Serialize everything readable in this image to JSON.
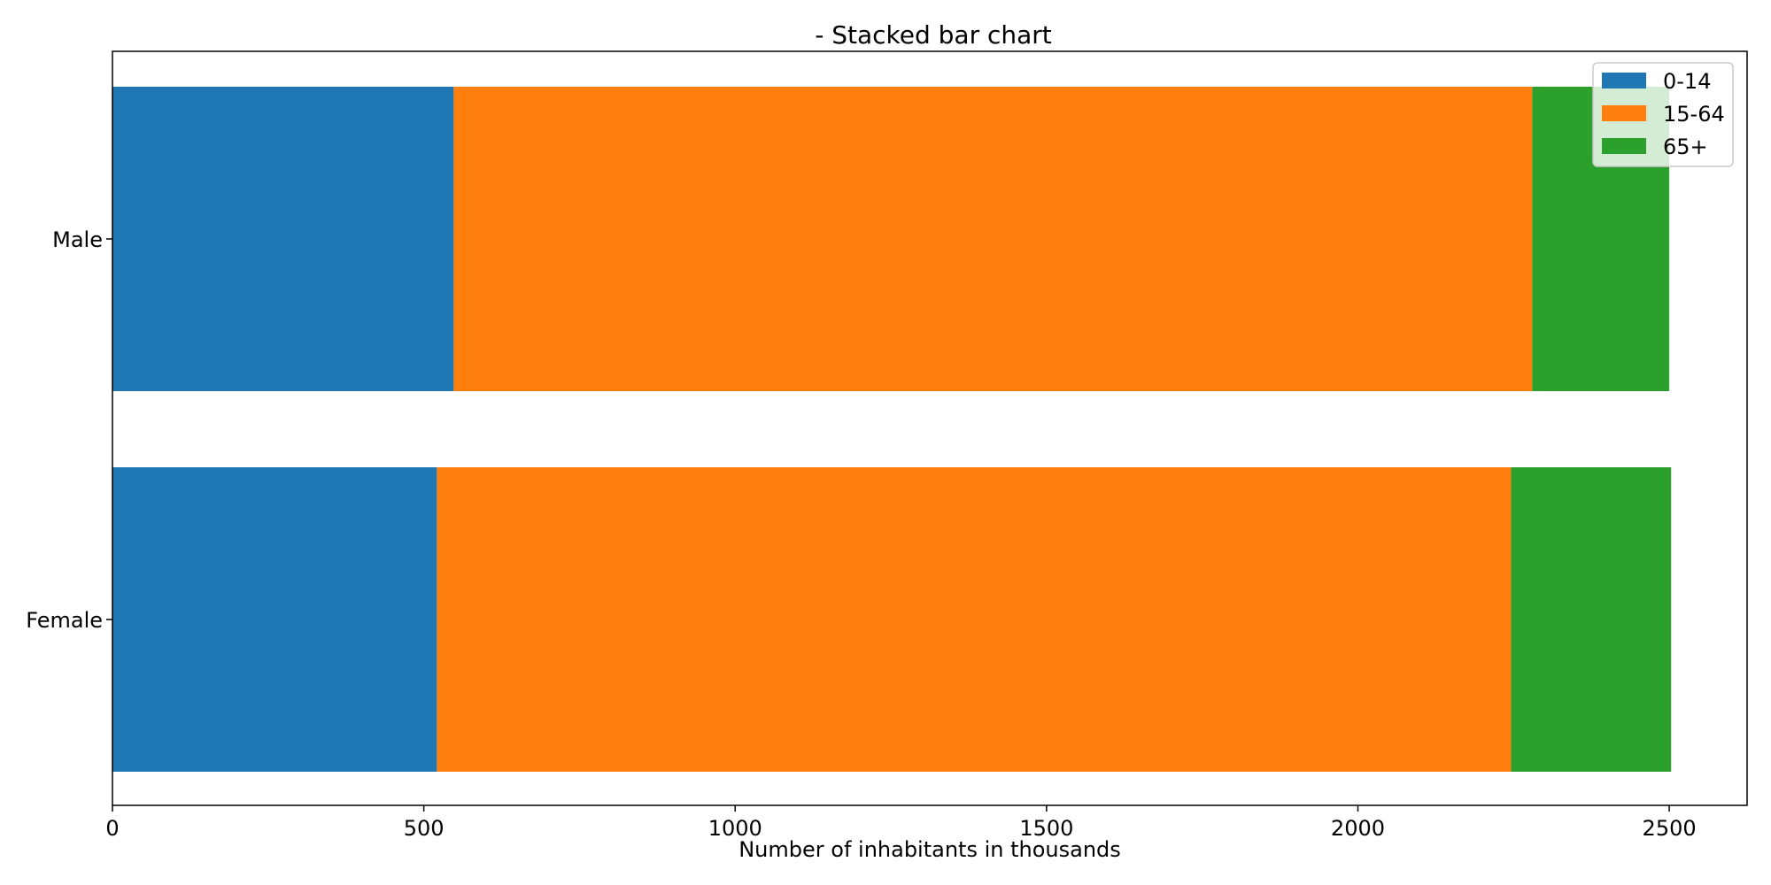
{
  "chart_data": {
    "type": "bar",
    "orientation": "horizontal",
    "stacked": true,
    "title": "- Stacked bar chart",
    "xlabel": "Number of inhabitants in thousands",
    "ylabel": "",
    "categories": [
      "Male",
      "Female"
    ],
    "series": [
      {
        "name": "0-14",
        "values": [
          548,
          521
        ],
        "color": "#1f77b4"
      },
      {
        "name": "15-64",
        "values": [
          1732,
          1725
        ],
        "color": "#ff7f0e"
      },
      {
        "name": "65+",
        "values": [
          220,
          257
        ],
        "color": "#2ca02c"
      }
    ],
    "xlim": [
      0,
      2625
    ],
    "xticks": [
      0,
      500,
      1000,
      1500,
      2000,
      2500
    ],
    "xtick_labels": [
      "0",
      "500",
      "1000",
      "1500",
      "2000",
      "2500"
    ],
    "grid": false,
    "legend": {
      "position": "top-right"
    }
  }
}
